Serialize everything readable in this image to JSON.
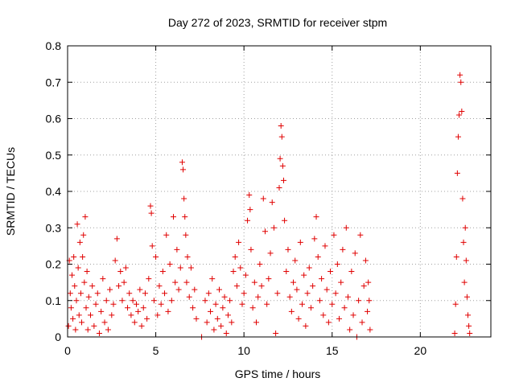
{
  "chart_data": {
    "type": "scatter",
    "title": "Day 272 of 2023, SRMTID for receiver stpm",
    "xlabel": "GPS time / hours",
    "ylabel": "SRMTID / TECUs",
    "xlim": [
      0,
      24
    ],
    "ylim": [
      0,
      0.8
    ],
    "x_ticks": [
      0,
      5,
      10,
      15,
      20
    ],
    "x_tick_labels": [
      "0",
      "5",
      "10",
      "15",
      "20"
    ],
    "y_ticks": [
      0,
      0.1,
      0.2,
      0.3,
      0.4,
      0.5,
      0.6,
      0.7,
      0.8
    ],
    "y_tick_labels": [
      "0",
      "0.1",
      "0.2",
      "0.3",
      "0.4",
      "0.5",
      "0.6",
      "0.7",
      "0.8"
    ],
    "grid": true,
    "marker": "+",
    "color": "#e00000",
    "series": [
      {
        "name": "SRMTID",
        "points": [
          [
            0.05,
            0.03
          ],
          [
            0.1,
            0.21
          ],
          [
            0.15,
            0.12
          ],
          [
            0.2,
            0.08
          ],
          [
            0.25,
            0.17
          ],
          [
            0.3,
            0.05
          ],
          [
            0.35,
            0.22
          ],
          [
            0.4,
            0.14
          ],
          [
            0.45,
            0.02
          ],
          [
            0.5,
            0.1
          ],
          [
            0.55,
            0.31
          ],
          [
            0.6,
            0.19
          ],
          [
            0.65,
            0.06
          ],
          [
            0.7,
            0.26
          ],
          [
            0.75,
            0.12
          ],
          [
            0.8,
            0.04
          ],
          [
            0.85,
            0.22
          ],
          [
            0.9,
            0.28
          ],
          [
            0.95,
            0.15
          ],
          [
            1.0,
            0.33
          ],
          [
            1.05,
            0.08
          ],
          [
            1.1,
            0.18
          ],
          [
            1.15,
            0.02
          ],
          [
            1.2,
            0.11
          ],
          [
            1.3,
            0.06
          ],
          [
            1.4,
            0.14
          ],
          [
            1.5,
            0.03
          ],
          [
            1.6,
            0.09
          ],
          [
            1.7,
            0.12
          ],
          [
            1.8,
            0.01
          ],
          [
            1.9,
            0.07
          ],
          [
            2.0,
            0.16
          ],
          [
            2.1,
            0.04
          ],
          [
            2.2,
            0.1
          ],
          [
            2.3,
            0.02
          ],
          [
            2.4,
            0.13
          ],
          [
            2.5,
            0.06
          ],
          [
            2.6,
            0.09
          ],
          [
            2.7,
            0.21
          ],
          [
            2.8,
            0.27
          ],
          [
            2.9,
            0.14
          ],
          [
            3.0,
            0.18
          ],
          [
            3.1,
            0.1
          ],
          [
            3.2,
            0.15
          ],
          [
            3.3,
            0.19
          ],
          [
            3.4,
            0.08
          ],
          [
            3.5,
            0.12
          ],
          [
            3.6,
            0.06
          ],
          [
            3.7,
            0.1
          ],
          [
            3.8,
            0.04
          ],
          [
            3.9,
            0.09
          ],
          [
            4.0,
            0.07
          ],
          [
            4.1,
            0.13
          ],
          [
            4.2,
            0.03
          ],
          [
            4.3,
            0.08
          ],
          [
            4.4,
            0.12
          ],
          [
            4.5,
            0.05
          ],
          [
            4.6,
            0.16
          ],
          [
            4.7,
            0.36
          ],
          [
            4.75,
            0.34
          ],
          [
            4.8,
            0.25
          ],
          [
            4.9,
            0.1
          ],
          [
            5.0,
            0.22
          ],
          [
            5.1,
            0.06
          ],
          [
            5.2,
            0.14
          ],
          [
            5.3,
            0.09
          ],
          [
            5.4,
            0.18
          ],
          [
            5.5,
            0.12
          ],
          [
            5.6,
            0.28
          ],
          [
            5.7,
            0.07
          ],
          [
            5.8,
            0.2
          ],
          [
            5.9,
            0.1
          ],
          [
            6.0,
            0.33
          ],
          [
            6.1,
            0.15
          ],
          [
            6.2,
            0.24
          ],
          [
            6.3,
            0.13
          ],
          [
            6.4,
            0.19
          ],
          [
            6.5,
            0.48
          ],
          [
            6.55,
            0.46
          ],
          [
            6.6,
            0.38
          ],
          [
            6.65,
            0.33
          ],
          [
            6.7,
            0.28
          ],
          [
            6.75,
            0.15
          ],
          [
            6.8,
            0.22
          ],
          [
            6.9,
            0.11
          ],
          [
            7.0,
            0.19
          ],
          [
            7.1,
            0.08
          ],
          [
            7.2,
            0.13
          ],
          [
            7.3,
            0.05
          ],
          [
            7.6,
            0.0
          ],
          [
            7.8,
            0.1
          ],
          [
            7.9,
            0.04
          ],
          [
            8.0,
            0.12
          ],
          [
            8.1,
            0.07
          ],
          [
            8.2,
            0.16
          ],
          [
            8.3,
            0.02
          ],
          [
            8.4,
            0.09
          ],
          [
            8.5,
            0.05
          ],
          [
            8.6,
            0.13
          ],
          [
            8.7,
            0.03
          ],
          [
            8.8,
            0.08
          ],
          [
            8.9,
            0.11
          ],
          [
            9.0,
            0.01
          ],
          [
            9.1,
            0.06
          ],
          [
            9.2,
            0.1
          ],
          [
            9.3,
            0.04
          ],
          [
            9.4,
            0.18
          ],
          [
            9.5,
            0.22
          ],
          [
            9.6,
            0.14
          ],
          [
            9.7,
            0.26
          ],
          [
            9.8,
            0.19
          ],
          [
            9.9,
            0.09
          ],
          [
            10.0,
            0.12
          ],
          [
            10.1,
            0.17
          ],
          [
            10.2,
            0.32
          ],
          [
            10.3,
            0.39
          ],
          [
            10.35,
            0.35
          ],
          [
            10.4,
            0.24
          ],
          [
            10.5,
            0.08
          ],
          [
            10.6,
            0.15
          ],
          [
            10.7,
            0.04
          ],
          [
            10.8,
            0.11
          ],
          [
            10.9,
            0.2
          ],
          [
            11.0,
            0.14
          ],
          [
            11.1,
            0.38
          ],
          [
            11.2,
            0.29
          ],
          [
            11.3,
            0.09
          ],
          [
            11.4,
            0.16
          ],
          [
            11.5,
            0.23
          ],
          [
            11.6,
            0.37
          ],
          [
            11.7,
            0.3
          ],
          [
            11.8,
            0.01
          ],
          [
            11.9,
            0.12
          ],
          [
            12.0,
            0.41
          ],
          [
            12.05,
            0.49
          ],
          [
            12.1,
            0.58
          ],
          [
            12.15,
            0.55
          ],
          [
            12.2,
            0.47
          ],
          [
            12.25,
            0.43
          ],
          [
            12.3,
            0.32
          ],
          [
            12.4,
            0.18
          ],
          [
            12.5,
            0.24
          ],
          [
            12.6,
            0.11
          ],
          [
            12.7,
            0.07
          ],
          [
            12.8,
            0.15
          ],
          [
            12.9,
            0.21
          ],
          [
            13.0,
            0.13
          ],
          [
            13.1,
            0.05
          ],
          [
            13.2,
            0.26
          ],
          [
            13.3,
            0.09
          ],
          [
            13.4,
            0.17
          ],
          [
            13.5,
            0.03
          ],
          [
            13.6,
            0.12
          ],
          [
            13.7,
            0.19
          ],
          [
            13.8,
            0.08
          ],
          [
            13.9,
            0.14
          ],
          [
            14.0,
            0.27
          ],
          [
            14.1,
            0.33
          ],
          [
            14.2,
            0.22
          ],
          [
            14.3,
            0.1
          ],
          [
            14.4,
            0.16
          ],
          [
            14.5,
            0.06
          ],
          [
            14.6,
            0.25
          ],
          [
            14.7,
            0.13
          ],
          [
            14.8,
            0.04
          ],
          [
            14.9,
            0.18
          ],
          [
            15.0,
            0.09
          ],
          [
            15.1,
            0.28
          ],
          [
            15.2,
            0.12
          ],
          [
            15.3,
            0.2
          ],
          [
            15.4,
            0.05
          ],
          [
            15.5,
            0.15
          ],
          [
            15.6,
            0.24
          ],
          [
            15.7,
            0.08
          ],
          [
            15.8,
            0.3
          ],
          [
            15.9,
            0.11
          ],
          [
            16.0,
            0.02
          ],
          [
            16.1,
            0.18
          ],
          [
            16.2,
            0.06
          ],
          [
            16.3,
            0.23
          ],
          [
            16.4,
            0.0
          ],
          [
            16.5,
            0.1
          ],
          [
            16.6,
            0.28
          ],
          [
            16.7,
            0.04
          ],
          [
            16.8,
            0.14
          ],
          [
            16.9,
            0.21
          ],
          [
            17.0,
            0.07
          ],
          [
            17.05,
            0.15
          ],
          [
            17.1,
            0.1
          ],
          [
            17.15,
            0.02
          ],
          [
            21.95,
            0.01
          ],
          [
            22.0,
            0.09
          ],
          [
            22.05,
            0.22
          ],
          [
            22.1,
            0.45
          ],
          [
            22.15,
            0.55
          ],
          [
            22.2,
            0.61
          ],
          [
            22.25,
            0.72
          ],
          [
            22.3,
            0.7
          ],
          [
            22.35,
            0.62
          ],
          [
            22.4,
            0.38
          ],
          [
            22.45,
            0.26
          ],
          [
            22.5,
            0.15
          ],
          [
            22.55,
            0.3
          ],
          [
            22.6,
            0.21
          ],
          [
            22.65,
            0.11
          ],
          [
            22.7,
            0.06
          ],
          [
            22.75,
            0.03
          ],
          [
            22.8,
            0.01
          ]
        ]
      }
    ]
  }
}
